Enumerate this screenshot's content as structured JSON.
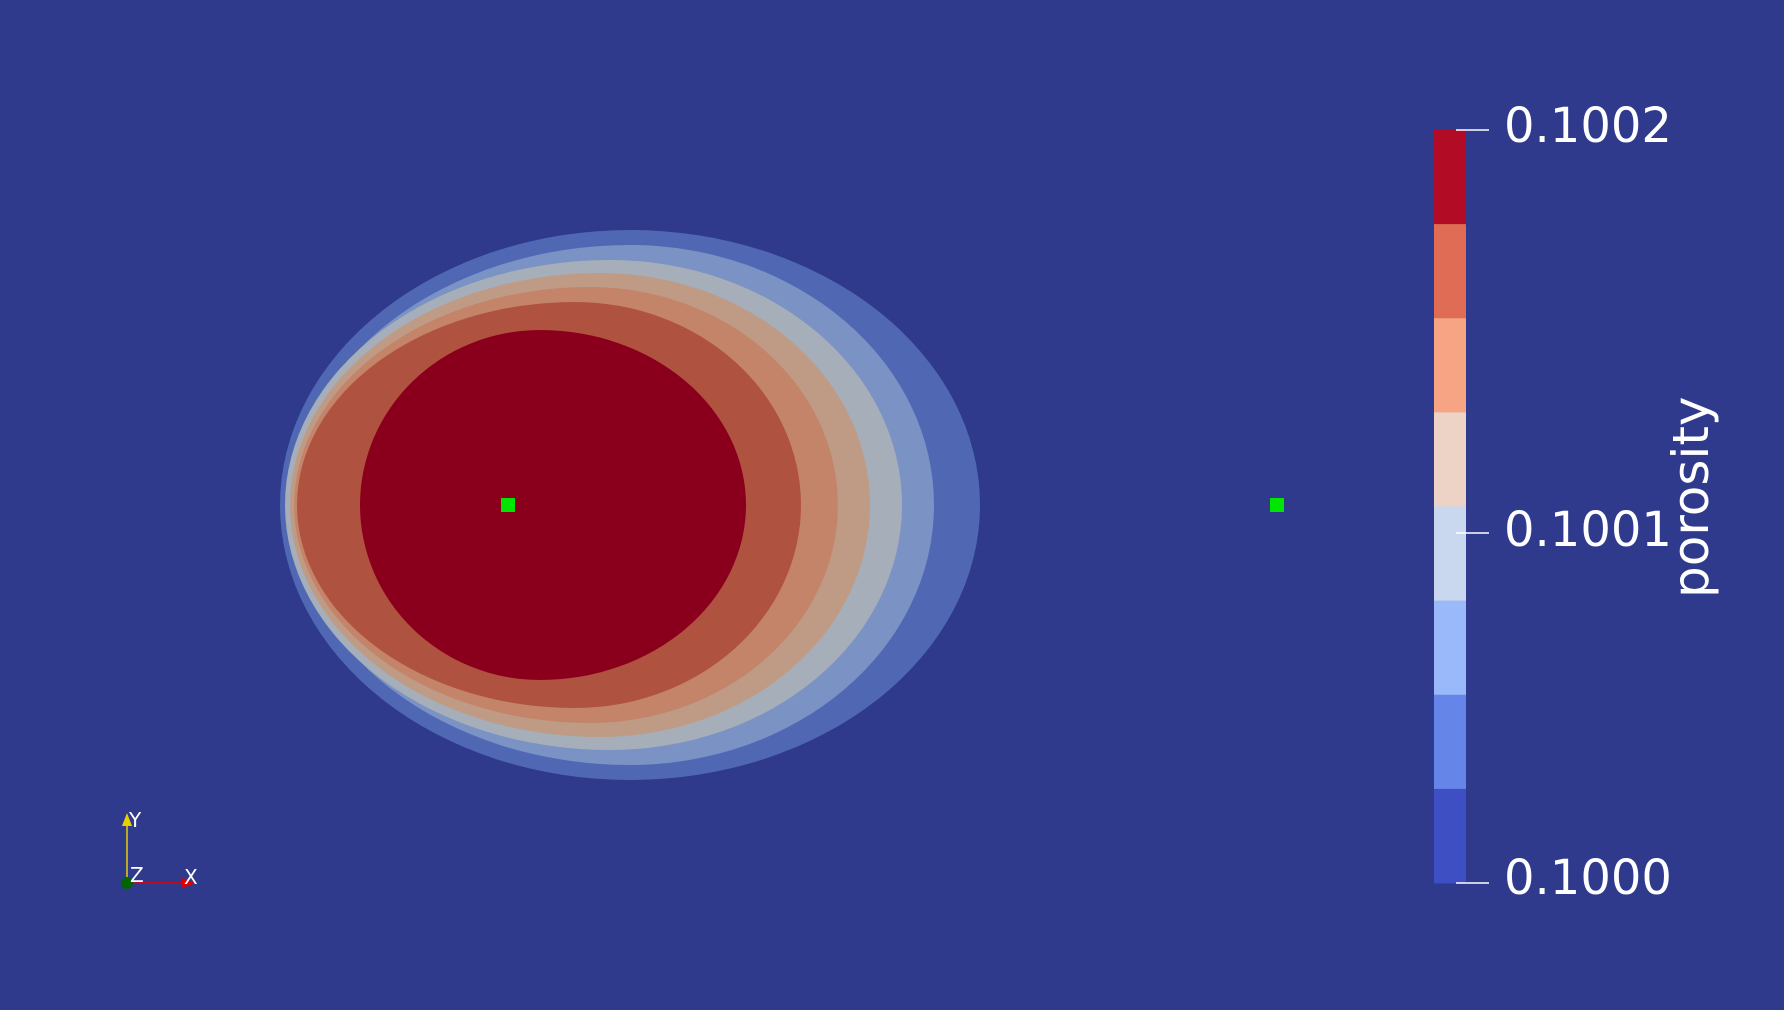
{
  "viewport": {
    "background": "#2f3a8d"
  },
  "field": {
    "name": "porosity",
    "contour_colors": [
      "#5068b4",
      "#7a92c4",
      "#a5aeb9",
      "#bf9b85",
      "#c4846a",
      "#b05240",
      "#8a001c"
    ]
  },
  "probe_points": {
    "color": "#00e600",
    "count": 2
  },
  "scalar_bar": {
    "title": "porosity",
    "ticks": [
      "0.1002",
      "0.1001",
      "0.1000"
    ],
    "range": [
      0.1,
      0.1002
    ],
    "bands": [
      "#b10b26",
      "#e06c55",
      "#f6a483",
      "#ecd3c6",
      "#c9d7ef",
      "#9ab9fa",
      "#6685e8",
      "#3e4fc4"
    ]
  },
  "orientation_axes": {
    "x_label": "X",
    "y_label": "Y",
    "z_label": "Z",
    "x_color": "#e00000",
    "y_color": "#e8d000",
    "z_color": "#006400"
  }
}
